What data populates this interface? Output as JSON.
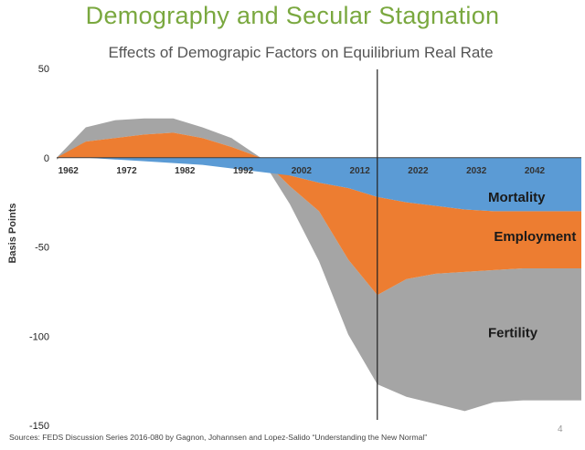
{
  "slide": {
    "title": "Demography and Secular Stagnation",
    "subtitle": "Effects of Demograpic Factors on Equilibrium Real Rate",
    "source": "Sources: FEDS Discussion Series  2016-080 by Gagnon, Johannsen and Lopez-Salido “Understanding the New Normal”",
    "page_number": "4"
  },
  "colors": {
    "title": "#7aa83f",
    "mortality": "#5b9bd5",
    "employment": "#ed7d31",
    "fertility": "#a5a5a5",
    "axis": "#404040"
  },
  "chart_data": {
    "type": "area",
    "title": "Effects of Demograpic Factors on Equilibrium Real Rate",
    "xlabel": "",
    "ylabel": "Basis Points",
    "xlim": [
      1960,
      2050
    ],
    "ylim": [
      -150,
      50
    ],
    "x_ticks": [
      "1962",
      "1972",
      "1982",
      "1992",
      "2002",
      "2012",
      "2022",
      "2032",
      "2042"
    ],
    "y_ticks": [
      "50",
      "0",
      "-50",
      "-100",
      "-150"
    ],
    "vertical_marker_year": 2015,
    "grid": false,
    "series": [
      {
        "name": "Mortality",
        "label_year": 2034,
        "label_value": -22,
        "x": [
          1960,
          1965,
          1970,
          1975,
          1980,
          1985,
          1990,
          1995,
          2000,
          2005,
          2010,
          2015,
          2020,
          2025,
          2030,
          2035,
          2040,
          2045,
          2050
        ],
        "values": [
          0,
          0,
          -1,
          -2,
          -3,
          -4,
          -6,
          -8,
          -10,
          -14,
          -17,
          -22,
          -25,
          -27,
          -29,
          -30,
          -30,
          -30,
          -30
        ]
      },
      {
        "name": "Employment",
        "label_year": 2035,
        "label_value": -44,
        "x": [
          1960,
          1965,
          1970,
          1975,
          1980,
          1985,
          1990,
          1995,
          2000,
          2005,
          2010,
          2015,
          2020,
          2025,
          2030,
          2035,
          2040,
          2045,
          2050
        ],
        "values": [
          0,
          9,
          11,
          13,
          14,
          11,
          6,
          0,
          -6,
          -16,
          -40,
          -55,
          -43,
          -38,
          -35,
          -33,
          -32,
          -32,
          -32
        ]
      },
      {
        "name": "Fertility",
        "label_year": 2034,
        "label_value": -98,
        "x": [
          1960,
          1965,
          1970,
          1975,
          1980,
          1985,
          1990,
          1995,
          2000,
          2005,
          2010,
          2015,
          2020,
          2025,
          2030,
          2035,
          2040,
          2045,
          2050
        ],
        "values": [
          -1,
          8,
          10,
          9,
          8,
          6,
          5,
          0,
          -10,
          -28,
          -42,
          -50,
          -66,
          -73,
          -78,
          -74,
          -74,
          -74,
          -74
        ]
      }
    ]
  }
}
